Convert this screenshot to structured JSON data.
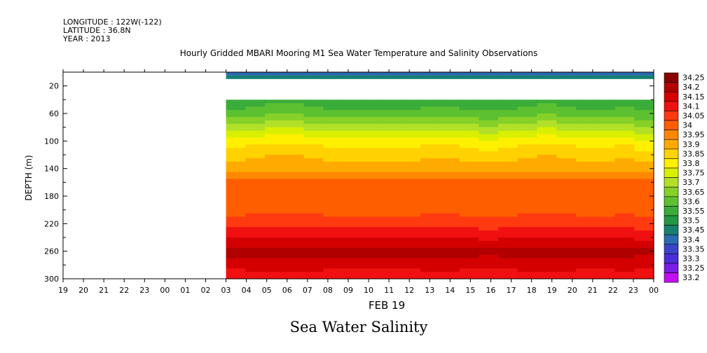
{
  "header": {
    "longitude": "LONGITUDE : 122W(-122)",
    "latitude": "LATITUDE : 36.8N",
    "year": "YEAR : 2013"
  },
  "chart_data": {
    "type": "heatmap",
    "title": "Hourly Gridded MBARI Mooring M1 Sea Water Temperature and Salinity Observations",
    "subtitle": "Sea Water Salinity",
    "xlabel": "FEB 19",
    "ylabel": "DEPTH (m)",
    "x_ticks": [
      "19",
      "20",
      "21",
      "22",
      "23",
      "00",
      "01",
      "02",
      "03",
      "04",
      "05",
      "06",
      "07",
      "08",
      "09",
      "10",
      "11",
      "12",
      "13",
      "14",
      "15",
      "16",
      "17",
      "18",
      "19",
      "20",
      "21",
      "22",
      "23",
      "00"
    ],
    "x_range_hours": [
      0,
      29
    ],
    "y_range": [
      300,
      0
    ],
    "y_ticks": [
      20,
      60,
      100,
      140,
      180,
      220,
      260,
      300
    ],
    "data_start_hour": 8,
    "shallow_band": {
      "depth_top": 0,
      "depth_bottom": 10,
      "value": 33.45,
      "top_value": 33.4
    },
    "gap_depth": [
      10,
      40
    ],
    "colorbar": {
      "levels": [
        "34.25",
        "34.2",
        "34.15",
        "34.1",
        "34.05",
        "34",
        "33.95",
        "33.9",
        "33.85",
        "33.8",
        "33.75",
        "33.7",
        "33.65",
        "33.6",
        "33.55",
        "33.5",
        "33.45",
        "33.4",
        "33.35",
        "33.3",
        "33.25",
        "33.2"
      ],
      "colors": [
        "#8B0000",
        "#B00000",
        "#D40000",
        "#F01010",
        "#FF3A10",
        "#FF5E00",
        "#FF8800",
        "#FFAA00",
        "#FFD200",
        "#FFF000",
        "#D8F000",
        "#B2E028",
        "#86D028",
        "#5CC030",
        "#3AAC3A",
        "#229844",
        "#178070",
        "#2A6AB0",
        "#3A44C8",
        "#4C2ED8",
        "#7A1EE4",
        "#C010F0"
      ]
    },
    "profile_depths": [
      40,
      60,
      80,
      100,
      120,
      140,
      160,
      180,
      200,
      220,
      240,
      260,
      280,
      300
    ],
    "profile_values": [
      33.56,
      33.62,
      33.72,
      33.82,
      33.88,
      33.93,
      34.02,
      34.02,
      34.03,
      34.08,
      34.14,
      34.22,
      34.17,
      34.11
    ],
    "column_offsets": [
      0,
      0.01,
      0.02,
      0.02,
      0.01,
      0,
      0,
      0,
      0,
      0,
      0.01,
      0.01,
      0,
      -0.01,
      0,
      0.01,
      0.02,
      0.01,
      0,
      0,
      0.01,
      -0.01
    ]
  }
}
